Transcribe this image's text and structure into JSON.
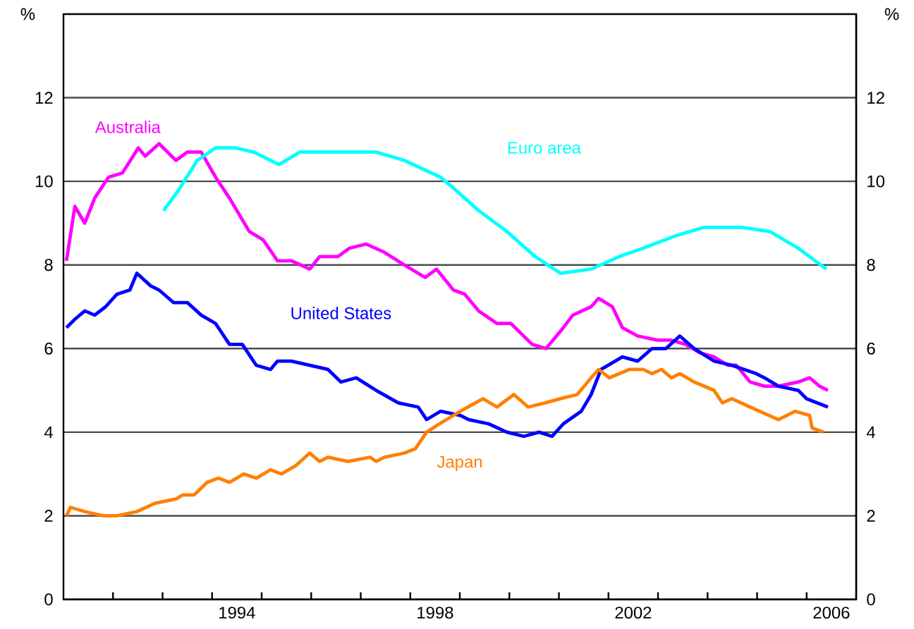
{
  "chart_data": {
    "type": "line",
    "ylabel": "%",
    "y2label": "%",
    "xlim": [
      1991,
      2007
    ],
    "xticks": [
      {
        "value": 1992,
        "label": null
      },
      {
        "value": 1993,
        "label": null
      },
      {
        "value": 1994,
        "label": null
      },
      {
        "value": 1995,
        "label": null
      },
      {
        "value": 1996,
        "label": null
      },
      {
        "value": 1997,
        "label": null
      },
      {
        "value": 1998,
        "label": null
      },
      {
        "value": 1999,
        "label": null
      },
      {
        "value": 2000,
        "label": null
      },
      {
        "value": 2001,
        "label": null
      },
      {
        "value": 2002,
        "label": null
      },
      {
        "value": 2003,
        "label": null
      },
      {
        "value": 2004,
        "label": null
      },
      {
        "value": 2005,
        "label": null
      },
      {
        "value": 2006,
        "label": null
      },
      {
        "value": 1994.5,
        "label": "1994"
      },
      {
        "value": 1998.5,
        "label": "1998"
      },
      {
        "value": 2002.5,
        "label": "2002"
      },
      {
        "value": 2006.5,
        "label": "2006"
      }
    ],
    "ylim": [
      0,
      14
    ],
    "yticks": [
      0,
      2,
      4,
      6,
      8,
      10,
      12
    ],
    "y2lim": [
      0,
      14
    ],
    "y2ticks": [
      0,
      2,
      4,
      6,
      8,
      10,
      12
    ],
    "grid": "y",
    "legend": false,
    "marker": "none",
    "line_style": "solid",
    "series": [
      {
        "name": "Australia",
        "color": "#ff00ff",
        "x": [
          1991.06,
          1991.23,
          1991.43,
          1991.63,
          1991.91,
          1992.19,
          1992.51,
          1992.65,
          1992.93,
          1993.27,
          1993.5,
          1993.78,
          1994.07,
          1994.35,
          1994.75,
          1995.03,
          1995.32,
          1995.6,
          1995.97,
          1996.17,
          1996.54,
          1996.77,
          1997.11,
          1997.48,
          1997.88,
          1998.3,
          1998.53,
          1998.87,
          1999.1,
          1999.38,
          1999.75,
          2000.03,
          2000.46,
          2000.74,
          2001.09,
          2001.28,
          2001.65,
          2001.8,
          2002.08,
          2002.28,
          2002.59,
          2002.99,
          2003.27,
          2003.56,
          2003.84,
          2004.13,
          2004.41,
          2004.58,
          2004.86,
          2005.15,
          2005.43,
          2005.83,
          2006.06,
          2006.26,
          2006.43
        ],
        "values": [
          8.1,
          9.4,
          9.0,
          9.6,
          10.1,
          10.2,
          10.8,
          10.6,
          10.9,
          10.5,
          10.7,
          10.7,
          10.1,
          9.6,
          8.8,
          8.6,
          8.1,
          8.1,
          7.9,
          8.2,
          8.2,
          8.4,
          8.5,
          8.3,
          8.0,
          7.7,
          7.9,
          7.4,
          7.3,
          6.9,
          6.6,
          6.6,
          6.1,
          6.0,
          6.5,
          6.8,
          7.0,
          7.2,
          7.0,
          6.5,
          6.3,
          6.2,
          6.2,
          6.1,
          5.9,
          5.8,
          5.6,
          5.6,
          5.2,
          5.1,
          5.1,
          5.2,
          5.3,
          5.1,
          5.0
        ]
      },
      {
        "name": "Euro area",
        "color": "#00ffff",
        "x": [
          1993.02,
          1993.33,
          1993.7,
          1994.07,
          1994.47,
          1994.84,
          1995.35,
          1995.77,
          1996.34,
          1997.31,
          1997.88,
          1998.61,
          1998.81,
          1999.38,
          1999.95,
          2000.52,
          2001.03,
          2001.65,
          2002.22,
          2002.7,
          2003.36,
          2003.93,
          2004.69,
          2005.26,
          2005.83,
          2006.4
        ],
        "values": [
          9.3,
          9.8,
          10.5,
          10.8,
          10.8,
          10.7,
          10.4,
          10.7,
          10.7,
          10.7,
          10.5,
          10.1,
          9.9,
          9.3,
          8.8,
          8.2,
          7.8,
          7.9,
          8.2,
          8.4,
          8.7,
          8.9,
          8.9,
          8.8,
          8.4,
          7.9
        ]
      },
      {
        "name": "United States",
        "color": "#0000ff",
        "x": [
          1991.06,
          1991.23,
          1991.43,
          1991.63,
          1991.85,
          1992.08,
          1992.34,
          1992.48,
          1992.76,
          1992.93,
          1993.22,
          1993.5,
          1993.78,
          1994.07,
          1994.35,
          1994.61,
          1994.89,
          1995.18,
          1995.32,
          1995.6,
          1995.97,
          1996.34,
          1996.6,
          1996.91,
          1997.31,
          1997.76,
          1998.16,
          1998.33,
          1998.61,
          1999.01,
          1999.18,
          1999.58,
          1999.95,
          2000.29,
          2000.6,
          2000.86,
          2001.09,
          2001.45,
          2001.65,
          2001.85,
          2002.28,
          2002.59,
          2002.88,
          2003.16,
          2003.44,
          2003.73,
          2004.13,
          2004.49,
          2004.98,
          2005.15,
          2005.43,
          2005.83,
          2006.0,
          2006.43
        ],
        "values": [
          6.5,
          6.7,
          6.9,
          6.8,
          7.0,
          7.3,
          7.4,
          7.8,
          7.5,
          7.4,
          7.1,
          7.1,
          6.8,
          6.6,
          6.1,
          6.1,
          5.6,
          5.5,
          5.7,
          5.7,
          5.6,
          5.5,
          5.2,
          5.3,
          5.0,
          4.7,
          4.6,
          4.3,
          4.5,
          4.4,
          4.3,
          4.2,
          4.0,
          3.9,
          4.0,
          3.9,
          4.2,
          4.5,
          4.9,
          5.5,
          5.8,
          5.7,
          6.0,
          6.0,
          6.3,
          6.0,
          5.7,
          5.6,
          5.4,
          5.3,
          5.1,
          5.0,
          4.8,
          4.6
        ]
      },
      {
        "name": "Japan",
        "color": "#ff8000",
        "x": [
          1991.06,
          1991.14,
          1991.43,
          1991.8,
          1992.08,
          1992.48,
          1992.85,
          1993.27,
          1993.41,
          1993.64,
          1993.9,
          1994.13,
          1994.35,
          1994.64,
          1994.89,
          1995.18,
          1995.4,
          1995.69,
          1995.97,
          1996.17,
          1996.34,
          1996.74,
          1997.19,
          1997.31,
          1997.48,
          1997.88,
          1998.1,
          1998.33,
          1998.59,
          1998.73,
          1999.01,
          1999.47,
          1999.75,
          2000.09,
          2000.38,
          2000.72,
          2001.03,
          2001.37,
          2001.65,
          2001.8,
          2002.02,
          2002.42,
          2002.7,
          2002.88,
          2003.07,
          2003.27,
          2003.44,
          2003.73,
          2004.13,
          2004.3,
          2004.49,
          2004.86,
          2005.43,
          2005.77,
          2006.06,
          2006.11,
          2006.34
        ],
        "values": [
          2.0,
          2.2,
          2.1,
          2.0,
          2.0,
          2.1,
          2.3,
          2.4,
          2.5,
          2.5,
          2.8,
          2.9,
          2.8,
          3.0,
          2.9,
          3.1,
          3.0,
          3.2,
          3.5,
          3.3,
          3.4,
          3.3,
          3.4,
          3.3,
          3.4,
          3.5,
          3.6,
          4.0,
          4.2,
          4.3,
          4.5,
          4.8,
          4.6,
          4.9,
          4.6,
          4.7,
          4.8,
          4.9,
          5.3,
          5.5,
          5.3,
          5.5,
          5.5,
          5.4,
          5.5,
          5.3,
          5.4,
          5.2,
          5.0,
          4.7,
          4.8,
          4.6,
          4.3,
          4.5,
          4.4,
          4.1,
          4.0
        ]
      }
    ]
  }
}
